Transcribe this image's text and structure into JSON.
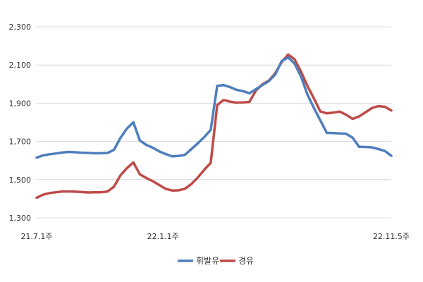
{
  "chart_data": {
    "type": "line",
    "title": "",
    "xlabel": "",
    "ylabel": "",
    "ylim": [
      1300,
      2300
    ],
    "yticks": [
      "2,300",
      "2,100",
      "1,900",
      "1,700",
      "1,500",
      "1,300"
    ],
    "ytick_values": [
      2300,
      2100,
      1900,
      1700,
      1500,
      1300
    ],
    "x_tick_labels": [
      "21.7.1주",
      "22.1.1주",
      "22.11.5주"
    ],
    "x_tick_index": [
      0,
      26,
      73
    ],
    "grid": true,
    "legend_position": "bottom",
    "series": [
      {
        "name": "휘발유",
        "color": "#4F7EBD",
        "values": [
          1615,
          1627,
          1633,
          1637,
          1642,
          1645,
          1643,
          1641,
          1640,
          1638,
          1638,
          1640,
          1656,
          1719,
          1767,
          1800,
          1705,
          1682,
          1667,
          1648,
          1634,
          1622,
          1624,
          1630,
          1660,
          1690,
          1723,
          1761,
          1991,
          1995,
          1984,
          1970,
          1963,
          1952,
          1973,
          1995,
          2015,
          2050,
          2120,
          2140,
          2107,
          2040,
          1945,
          1875,
          1810,
          1745,
          1744,
          1742,
          1740,
          1720,
          1672,
          1671,
          1669,
          1660,
          1650,
          1625
        ]
      },
      {
        "name": "경유",
        "color": "#BE4B48",
        "values": [
          1405,
          1421,
          1430,
          1434,
          1438,
          1438,
          1437,
          1435,
          1433,
          1434,
          1434,
          1438,
          1463,
          1523,
          1560,
          1590,
          1528,
          1509,
          1492,
          1472,
          1452,
          1443,
          1444,
          1452,
          1477,
          1511,
          1552,
          1588,
          1890,
          1917,
          1908,
          1903,
          1904,
          1907,
          1966,
          1998,
          2018,
          2057,
          2115,
          2155,
          2130,
          2065,
          1990,
          1925,
          1857,
          1847,
          1851,
          1856,
          1840,
          1818,
          1831,
          1852,
          1875,
          1885,
          1881,
          1862
        ]
      }
    ]
  }
}
